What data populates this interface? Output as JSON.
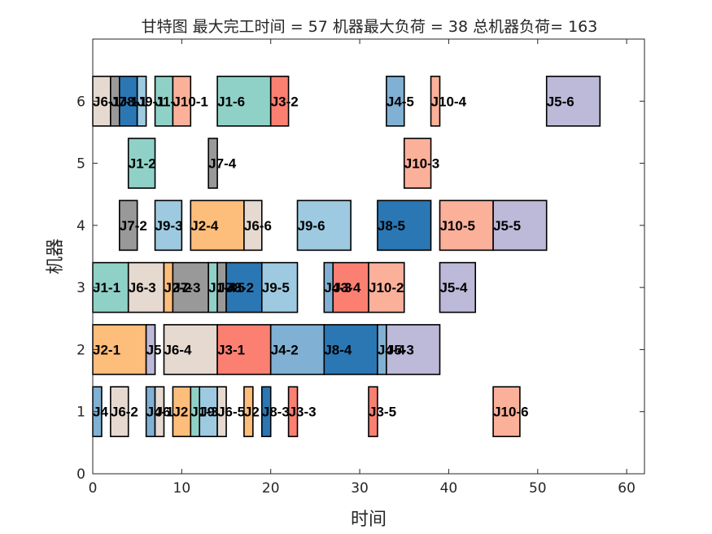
{
  "chart_data": {
    "type": "gantt",
    "title": "甘特图 最大完工时间 = 57 机器最大负荷 = 38 总机器负荷= 163",
    "xlabel": "时间",
    "ylabel": "机器",
    "xlim": [
      0,
      62
    ],
    "ylim": [
      0,
      7
    ],
    "xticks": [
      0,
      10,
      20,
      30,
      40,
      50,
      60
    ],
    "yticks": [
      0,
      1,
      2,
      3,
      4,
      5,
      6
    ],
    "grid": false,
    "job_colors": {
      "J1": "#8fd1c7",
      "J2": "#fdbd7b",
      "J3": "#fb8072",
      "J4": "#80b0d3",
      "J5": "#bdb9d9",
      "J6": "#e5d9d0",
      "J7": "#999999",
      "J8": "#2a77b4",
      "J9": "#9ecae1",
      "J10": "#fbb09a"
    },
    "tasks": [
      {
        "machine": 6,
        "start": 0,
        "end": 2,
        "job": "J6",
        "label": "J6-1"
      },
      {
        "machine": 6,
        "start": 2,
        "end": 3,
        "job": "J7",
        "label": "J7-1"
      },
      {
        "machine": 6,
        "start": 3,
        "end": 5,
        "job": "J8",
        "label": "J8-1"
      },
      {
        "machine": 6,
        "start": 5,
        "end": 6,
        "job": "J9",
        "label": "J9-1"
      },
      {
        "machine": 6,
        "start": 7,
        "end": 9,
        "job": "J1",
        "label": "J1-"
      },
      {
        "machine": 6,
        "start": 9,
        "end": 11,
        "job": "J10",
        "label": "J10-1"
      },
      {
        "machine": 6,
        "start": 14,
        "end": 20,
        "job": "J1",
        "label": "J1-6"
      },
      {
        "machine": 6,
        "start": 20,
        "end": 22,
        "job": "J3",
        "label": "J3-2"
      },
      {
        "machine": 6,
        "start": 33,
        "end": 35,
        "job": "J4",
        "label": "J4-5"
      },
      {
        "machine": 6,
        "start": 38,
        "end": 39,
        "job": "J10",
        "label": "J10-4"
      },
      {
        "machine": 6,
        "start": 51,
        "end": 57,
        "job": "J5",
        "label": "J5-6"
      },
      {
        "machine": 5,
        "start": 4,
        "end": 7,
        "job": "J1",
        "label": "J1-2"
      },
      {
        "machine": 5,
        "start": 13,
        "end": 14,
        "job": "J7",
        "label": "J7-4"
      },
      {
        "machine": 5,
        "start": 35,
        "end": 38,
        "job": "J10",
        "label": "J10-3"
      },
      {
        "machine": 4,
        "start": 3,
        "end": 5,
        "job": "J7",
        "label": "J7-2"
      },
      {
        "machine": 4,
        "start": 7,
        "end": 10,
        "job": "J9",
        "label": "J9-3"
      },
      {
        "machine": 4,
        "start": 11,
        "end": 17,
        "job": "J2",
        "label": "J2-4"
      },
      {
        "machine": 4,
        "start": 17,
        "end": 19,
        "job": "J6",
        "label": "J6-6"
      },
      {
        "machine": 4,
        "start": 23,
        "end": 29,
        "job": "J9",
        "label": "J9-6"
      },
      {
        "machine": 4,
        "start": 32,
        "end": 38,
        "job": "J8",
        "label": "J8-5"
      },
      {
        "machine": 4,
        "start": 39,
        "end": 45,
        "job": "J10",
        "label": "J10-5"
      },
      {
        "machine": 4,
        "start": 45,
        "end": 51,
        "job": "J5",
        "label": "J5-5"
      },
      {
        "machine": 3,
        "start": 0,
        "end": 4,
        "job": "J1",
        "label": "J1-1"
      },
      {
        "machine": 3,
        "start": 4,
        "end": 8,
        "job": "J6",
        "label": "J6-3"
      },
      {
        "machine": 3,
        "start": 8,
        "end": 9,
        "job": "J2",
        "label": "J2-2"
      },
      {
        "machine": 3,
        "start": 9,
        "end": 13,
        "job": "J7",
        "label": "J7-3"
      },
      {
        "machine": 3,
        "start": 13,
        "end": 14,
        "job": "J1",
        "label": "J1-4"
      },
      {
        "machine": 3,
        "start": 14,
        "end": 15,
        "job": "J7",
        "label": "J7-5"
      },
      {
        "machine": 3,
        "start": 15,
        "end": 19,
        "job": "J8",
        "label": "J8-2"
      },
      {
        "machine": 3,
        "start": 19,
        "end": 23,
        "job": "J9",
        "label": "J9-5"
      },
      {
        "machine": 3,
        "start": 26,
        "end": 27,
        "job": "J4",
        "label": "J4-3"
      },
      {
        "machine": 3,
        "start": 27,
        "end": 31,
        "job": "J3",
        "label": "J3-4"
      },
      {
        "machine": 3,
        "start": 31,
        "end": 35,
        "job": "J10",
        "label": "J10-2"
      },
      {
        "machine": 3,
        "start": 39,
        "end": 43,
        "job": "J5",
        "label": "J5-4"
      },
      {
        "machine": 2,
        "start": 0,
        "end": 6,
        "job": "J2",
        "label": "J2-1"
      },
      {
        "machine": 2,
        "start": 6,
        "end": 7,
        "job": "J5",
        "label": "J5"
      },
      {
        "machine": 2,
        "start": 8,
        "end": 14,
        "job": "J6",
        "label": "J6-4"
      },
      {
        "machine": 2,
        "start": 14,
        "end": 20,
        "job": "J3",
        "label": "J3-1"
      },
      {
        "machine": 2,
        "start": 20,
        "end": 26,
        "job": "J4",
        "label": "J4-2"
      },
      {
        "machine": 2,
        "start": 26,
        "end": 32,
        "job": "J8",
        "label": "J8-4"
      },
      {
        "machine": 2,
        "start": 32,
        "end": 33,
        "job": "J4",
        "label": "J4-4"
      },
      {
        "machine": 2,
        "start": 33,
        "end": 39,
        "job": "J5",
        "label": "J5-3"
      },
      {
        "machine": 1,
        "start": 0,
        "end": 1,
        "job": "J4",
        "label": "J4"
      },
      {
        "machine": 1,
        "start": 2,
        "end": 4,
        "job": "J6",
        "label": "J6-2"
      },
      {
        "machine": 1,
        "start": 6,
        "end": 7,
        "job": "J4",
        "label": "J4-1"
      },
      {
        "machine": 1,
        "start": 7,
        "end": 8,
        "job": "J6",
        "label": "J6"
      },
      {
        "machine": 1,
        "start": 9,
        "end": 11,
        "job": "J2",
        "label": "J2"
      },
      {
        "machine": 1,
        "start": 11,
        "end": 12,
        "job": "J1",
        "label": "J1-3"
      },
      {
        "machine": 1,
        "start": 12,
        "end": 14,
        "job": "J9",
        "label": "J9"
      },
      {
        "machine": 1,
        "start": 14,
        "end": 15,
        "job": "J6",
        "label": "J6-5"
      },
      {
        "machine": 1,
        "start": 17,
        "end": 18,
        "job": "J2",
        "label": "J2"
      },
      {
        "machine": 1,
        "start": 19,
        "end": 20,
        "job": "J8",
        "label": "J8-3"
      },
      {
        "machine": 1,
        "start": 22,
        "end": 23,
        "job": "J3",
        "label": "J3-3"
      },
      {
        "machine": 1,
        "start": 31,
        "end": 32,
        "job": "J3",
        "label": "J3-5"
      },
      {
        "machine": 1,
        "start": 45,
        "end": 48,
        "job": "J10",
        "label": "J10-6"
      }
    ]
  }
}
